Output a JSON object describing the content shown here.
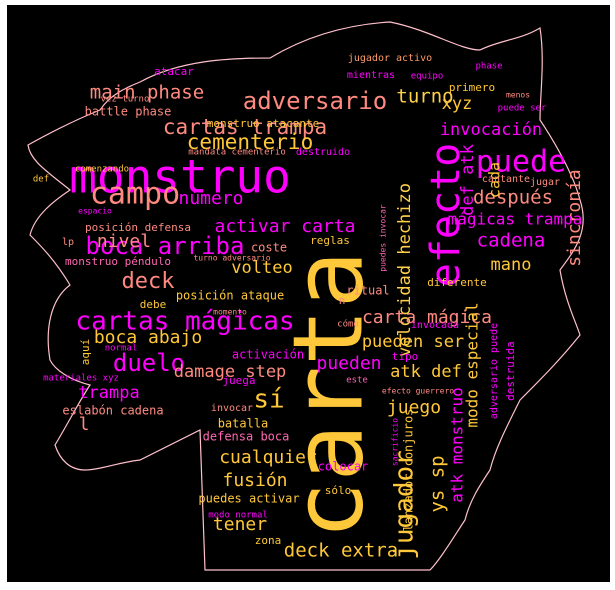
{
  "colors": {
    "background": "#000000",
    "outline": "#ffc0cb",
    "magenta": "#ff00ff",
    "pink": "#ff66b3",
    "salmon": "#ff8a80",
    "coral": "#ff9a66",
    "gold": "#ffc83a",
    "yellow": "#ffd14a",
    "orange": "#ffb04a"
  },
  "words": [
    {
      "t": "carta",
      "c": "gold"
    },
    {
      "t": "monstruo",
      "c": "magenta"
    },
    {
      "t": "efecto",
      "c": "magenta"
    },
    {
      "t": "adversario",
      "c": "salmon"
    },
    {
      "t": "puede",
      "c": "magenta"
    },
    {
      "t": "campo",
      "c": "salmon"
    },
    {
      "t": "cartas mágicas",
      "c": "magenta"
    },
    {
      "t": "cartas trampa",
      "c": "salmon"
    },
    {
      "t": "boca arriba",
      "c": "magenta"
    },
    {
      "t": "main phase",
      "c": "salmon"
    },
    {
      "t": "turno",
      "c": "yellow"
    },
    {
      "t": "cementerio",
      "c": "gold"
    },
    {
      "t": "deck",
      "c": "salmon"
    },
    {
      "t": "duelo",
      "c": "magenta"
    },
    {
      "t": "sí",
      "c": "gold"
    },
    {
      "t": "invocación",
      "c": "magenta"
    },
    {
      "t": "xyz",
      "c": "gold"
    },
    {
      "t": "después",
      "c": "salmon"
    },
    {
      "t": "sincronía",
      "c": "salmon"
    },
    {
      "t": "cadena",
      "c": "magenta"
    },
    {
      "t": "def atk",
      "c": "magenta"
    },
    {
      "t": "cada",
      "c": "gold"
    },
    {
      "t": "jugador",
      "c": "gold"
    },
    {
      "t": "nivel",
      "c": "salmon"
    },
    {
      "t": "número",
      "c": "magenta"
    },
    {
      "t": "activar carta",
      "c": "magenta"
    },
    {
      "t": "velocidad hechizo",
      "c": "yellow"
    },
    {
      "t": "mágicas trampa",
      "c": "magenta"
    },
    {
      "t": "mano",
      "c": "gold"
    },
    {
      "t": "volteo",
      "c": "gold"
    },
    {
      "t": "boca abajo",
      "c": "gold"
    },
    {
      "t": "carta mágica",
      "c": "salmon"
    },
    {
      "t": "pueden ser",
      "c": "gold"
    },
    {
      "t": "damage step",
      "c": "salmon"
    },
    {
      "t": "atk def",
      "c": "gold"
    },
    {
      "t": "pueden",
      "c": "magenta"
    },
    {
      "t": "modo especial",
      "c": "gold"
    },
    {
      "t": "trampa",
      "c": "magenta"
    },
    {
      "t": "juego",
      "c": "gold"
    },
    {
      "t": "atk monstruo",
      "c": "magenta"
    },
    {
      "t": "ys sp",
      "c": "gold"
    },
    {
      "t": "cualquier",
      "c": "gold"
    },
    {
      "t": "fusión",
      "c": "gold"
    },
    {
      "t": "tener",
      "c": "gold"
    },
    {
      "t": "deck extra",
      "c": "gold"
    },
    {
      "t": "l",
      "c": "salmon"
    },
    {
      "t": "eslabón cadena",
      "c": "salmon"
    },
    {
      "t": "batalla",
      "c": "gold"
    },
    {
      "t": "defensa boca",
      "c": "pink"
    },
    {
      "t": "lanzador conjuros",
      "c": "gold"
    },
    {
      "t": "monstruo péndulo",
      "c": "pink"
    },
    {
      "t": "posición defensa",
      "c": "salmon"
    },
    {
      "t": "posición ataque",
      "c": "gold"
    },
    {
      "t": "battle phase",
      "c": "salmon"
    },
    {
      "t": "monstruo atacante",
      "c": "gold"
    },
    {
      "t": "mandata cementerio",
      "c": "salmon"
    },
    {
      "t": "destruido",
      "c": "magenta"
    },
    {
      "t": "jugador activo",
      "c": "coral"
    },
    {
      "t": "phase",
      "c": "magenta"
    },
    {
      "t": "atacar",
      "c": "magenta"
    },
    {
      "t": "mientras",
      "c": "magenta"
    },
    {
      "t": "equipo",
      "c": "magenta"
    },
    {
      "t": "primero",
      "c": "gold"
    },
    {
      "t": "menos",
      "c": "salmon"
    },
    {
      "t": "puede ser",
      "c": "magenta"
    },
    {
      "t": "vez turno",
      "c": "salmon"
    },
    {
      "t": "comenzando",
      "c": "gold"
    },
    {
      "t": "def",
      "c": "gold"
    },
    {
      "t": "espacio",
      "c": "magenta"
    },
    {
      "t": "lp",
      "c": "salmon"
    },
    {
      "t": "cantante",
      "c": "salmon"
    },
    {
      "t": "jugar",
      "c": "salmon"
    },
    {
      "t": "coste",
      "c": "salmon"
    },
    {
      "t": "reglas",
      "c": "gold"
    },
    {
      "t": "puedes invocar",
      "c": "pink"
    },
    {
      "t": "turno adversario",
      "c": "salmon"
    },
    {
      "t": "ritual",
      "c": "salmon"
    },
    {
      "t": "diferente",
      "c": "gold"
    },
    {
      "t": "debe",
      "c": "gold"
    },
    {
      "t": "momento",
      "c": "salmon"
    },
    {
      "t": "aquí",
      "c": "gold"
    },
    {
      "t": "normal",
      "c": "magenta"
    },
    {
      "t": "cómo",
      "c": "salmon"
    },
    {
      "t": "invocada",
      "c": "magenta"
    },
    {
      "t": "tipo",
      "c": "magenta"
    },
    {
      "t": "destruida",
      "c": "magenta"
    },
    {
      "t": "activación",
      "c": "magenta"
    },
    {
      "t": "materiales xyz",
      "c": "magenta"
    },
    {
      "t": "juega",
      "c": "magenta"
    },
    {
      "t": "este",
      "c": "pink"
    },
    {
      "t": "efecto guerrero",
      "c": "salmon"
    },
    {
      "t": "adversario puede",
      "c": "magenta"
    },
    {
      "t": "invocar",
      "c": "salmon"
    },
    {
      "t": "sacrificio",
      "c": "magenta"
    },
    {
      "t": "colocar",
      "c": "magenta"
    },
    {
      "t": "sólo",
      "c": "gold"
    },
    {
      "t": "puedes activar",
      "c": "gold"
    },
    {
      "t": "modo normal",
      "c": "magenta"
    },
    {
      "t": "zona",
      "c": "gold"
    },
    {
      "t": "n",
      "c": "salmon"
    }
  ]
}
